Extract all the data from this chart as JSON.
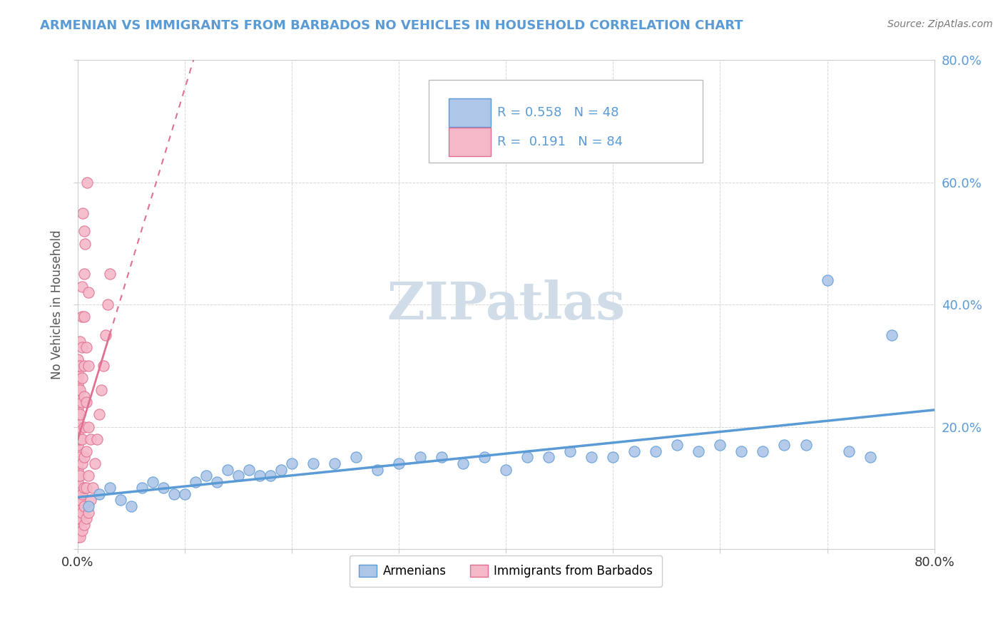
{
  "title": "ARMENIAN VS IMMIGRANTS FROM BARBADOS NO VEHICLES IN HOUSEHOLD CORRELATION CHART",
  "source": "Source: ZipAtlas.com",
  "ylabel": "No Vehicles in Household",
  "xlim": [
    0.0,
    0.8
  ],
  "ylim": [
    0.0,
    0.8
  ],
  "armenians_R": 0.558,
  "armenians_N": 48,
  "barbados_R": 0.191,
  "barbados_N": 84,
  "armenians_color": "#aec6e8",
  "armenians_edge_color": "#5b9bd5",
  "barbados_color": "#f4b8c8",
  "barbados_edge_color": "#e07090",
  "armenians_line_color": "#5b9bd5",
  "barbados_line_color": "#e07090",
  "watermark_color": "#d0dce8",
  "title_color": "#5b9bd5",
  "ytick_color": "#5b9bd5",
  "grid_color": "#cccccc",
  "armenians_scatter_x": [
    0.01,
    0.02,
    0.03,
    0.04,
    0.05,
    0.06,
    0.07,
    0.08,
    0.09,
    0.1,
    0.11,
    0.12,
    0.13,
    0.14,
    0.15,
    0.16,
    0.17,
    0.18,
    0.19,
    0.2,
    0.22,
    0.24,
    0.26,
    0.28,
    0.3,
    0.32,
    0.34,
    0.36,
    0.38,
    0.4,
    0.42,
    0.44,
    0.46,
    0.48,
    0.5,
    0.52,
    0.54,
    0.56,
    0.58,
    0.6,
    0.62,
    0.64,
    0.66,
    0.68,
    0.7,
    0.72,
    0.74,
    0.76
  ],
  "armenians_scatter_y": [
    0.07,
    0.09,
    0.1,
    0.08,
    0.07,
    0.1,
    0.11,
    0.1,
    0.09,
    0.09,
    0.11,
    0.12,
    0.11,
    0.13,
    0.12,
    0.13,
    0.12,
    0.12,
    0.13,
    0.14,
    0.14,
    0.14,
    0.15,
    0.13,
    0.14,
    0.15,
    0.15,
    0.14,
    0.15,
    0.13,
    0.15,
    0.15,
    0.16,
    0.15,
    0.15,
    0.16,
    0.16,
    0.17,
    0.16,
    0.17,
    0.16,
    0.16,
    0.17,
    0.17,
    0.44,
    0.16,
    0.15,
    0.35
  ],
  "barbados_scatter_x": [
    0.0,
    0.0,
    0.0,
    0.0,
    0.0,
    0.0,
    0.0,
    0.0,
    0.0,
    0.0,
    0.0,
    0.0,
    0.0,
    0.0,
    0.0,
    0.0,
    0.0,
    0.0,
    0.0,
    0.0,
    0.0,
    0.0,
    0.0,
    0.0,
    0.0,
    0.0,
    0.0,
    0.0,
    0.0,
    0.0,
    0.002,
    0.002,
    0.002,
    0.002,
    0.002,
    0.002,
    0.002,
    0.002,
    0.002,
    0.002,
    0.004,
    0.004,
    0.004,
    0.004,
    0.004,
    0.004,
    0.004,
    0.004,
    0.004,
    0.004,
    0.006,
    0.006,
    0.006,
    0.006,
    0.006,
    0.006,
    0.006,
    0.006,
    0.006,
    0.006,
    0.008,
    0.008,
    0.008,
    0.008,
    0.008,
    0.01,
    0.01,
    0.01,
    0.01,
    0.01,
    0.012,
    0.012,
    0.014,
    0.016,
    0.018,
    0.02,
    0.022,
    0.024,
    0.026,
    0.028,
    0.03,
    0.005,
    0.007,
    0.009
  ],
  "barbados_scatter_y": [
    0.02,
    0.03,
    0.04,
    0.05,
    0.06,
    0.07,
    0.08,
    0.09,
    0.1,
    0.11,
    0.12,
    0.13,
    0.14,
    0.15,
    0.16,
    0.17,
    0.18,
    0.19,
    0.2,
    0.21,
    0.22,
    0.23,
    0.24,
    0.25,
    0.26,
    0.27,
    0.28,
    0.29,
    0.3,
    0.31,
    0.02,
    0.05,
    0.08,
    0.12,
    0.15,
    0.18,
    0.22,
    0.26,
    0.3,
    0.34,
    0.03,
    0.06,
    0.09,
    0.14,
    0.18,
    0.24,
    0.28,
    0.33,
    0.38,
    0.43,
    0.04,
    0.07,
    0.1,
    0.15,
    0.2,
    0.25,
    0.3,
    0.38,
    0.45,
    0.52,
    0.05,
    0.1,
    0.16,
    0.24,
    0.33,
    0.06,
    0.12,
    0.2,
    0.3,
    0.42,
    0.08,
    0.18,
    0.1,
    0.14,
    0.18,
    0.22,
    0.26,
    0.3,
    0.35,
    0.4,
    0.45,
    0.55,
    0.5,
    0.6
  ]
}
